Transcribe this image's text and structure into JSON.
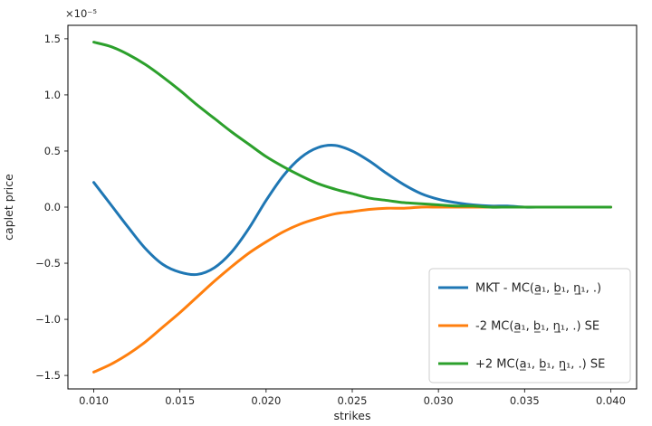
{
  "figure": {
    "background": "#ffffff",
    "spine_color": "#000000",
    "legend_border_color": "#cccccc",
    "legend_background": "#ffffff"
  },
  "chart_data": {
    "type": "line",
    "title": "",
    "xlabel": "strikes",
    "ylabel": "caplet price",
    "y_offset_label": "×10⁻⁵",
    "y_units_multiplier": 1e-05,
    "grid": false,
    "legend_position": "lower right",
    "xlim": [
      0.0085,
      0.0415
    ],
    "ylim": [
      -1.62,
      1.62
    ],
    "x_ticks": [
      0.01,
      0.015,
      0.02,
      0.025,
      0.03,
      0.035,
      0.04
    ],
    "x_tick_labels": [
      "0.010",
      "0.015",
      "0.020",
      "0.025",
      "0.030",
      "0.035",
      "0.040"
    ],
    "y_ticks": [
      -1.5,
      -1.0,
      -0.5,
      0.0,
      0.5,
      1.0,
      1.5
    ],
    "y_tick_labels": [
      "−1.5",
      "−1.0",
      "−0.5",
      "0.0",
      "0.5",
      "1.0",
      "1.5"
    ],
    "x": [
      0.01,
      0.011,
      0.012,
      0.013,
      0.014,
      0.015,
      0.016,
      0.017,
      0.018,
      0.019,
      0.02,
      0.021,
      0.022,
      0.023,
      0.024,
      0.025,
      0.026,
      0.027,
      0.028,
      0.029,
      0.03,
      0.031,
      0.032,
      0.033,
      0.034,
      0.035,
      0.036,
      0.037,
      0.038,
      0.039,
      0.04
    ],
    "series": [
      {
        "name": "MKT - MC(a̲₁, b̲₁, η̲₁, .)",
        "color": "#1f77b4",
        "values": [
          0.22,
          0.02,
          -0.18,
          -0.37,
          -0.51,
          -0.58,
          -0.6,
          -0.54,
          -0.4,
          -0.19,
          0.06,
          0.28,
          0.44,
          0.53,
          0.55,
          0.5,
          0.41,
          0.3,
          0.2,
          0.12,
          0.07,
          0.04,
          0.02,
          0.01,
          0.01,
          0.0,
          0.0,
          0.0,
          0.0,
          0.0,
          0.0
        ]
      },
      {
        "name": "-2 MC(a̲₁, b̲₁, η̲₁, .) SE",
        "color": "#ff7f0e",
        "values": [
          -1.47,
          -1.4,
          -1.31,
          -1.2,
          -1.07,
          -0.94,
          -0.8,
          -0.66,
          -0.53,
          -0.41,
          -0.31,
          -0.22,
          -0.15,
          -0.1,
          -0.06,
          -0.04,
          -0.02,
          -0.01,
          -0.01,
          0.0,
          0.0,
          0.0,
          0.0,
          0.0,
          0.0,
          0.0,
          0.0,
          0.0,
          0.0,
          0.0,
          0.0
        ]
      },
      {
        "name": "+2 MC(a̲₁, b̲₁, η̲₁, .) SE",
        "color": "#2ca02c",
        "values": [
          1.47,
          1.43,
          1.36,
          1.27,
          1.16,
          1.04,
          0.91,
          0.79,
          0.67,
          0.56,
          0.45,
          0.36,
          0.28,
          0.21,
          0.16,
          0.12,
          0.08,
          0.06,
          0.04,
          0.03,
          0.02,
          0.01,
          0.01,
          0.0,
          0.0,
          0.0,
          0.0,
          0.0,
          0.0,
          0.0,
          0.0
        ]
      }
    ]
  }
}
